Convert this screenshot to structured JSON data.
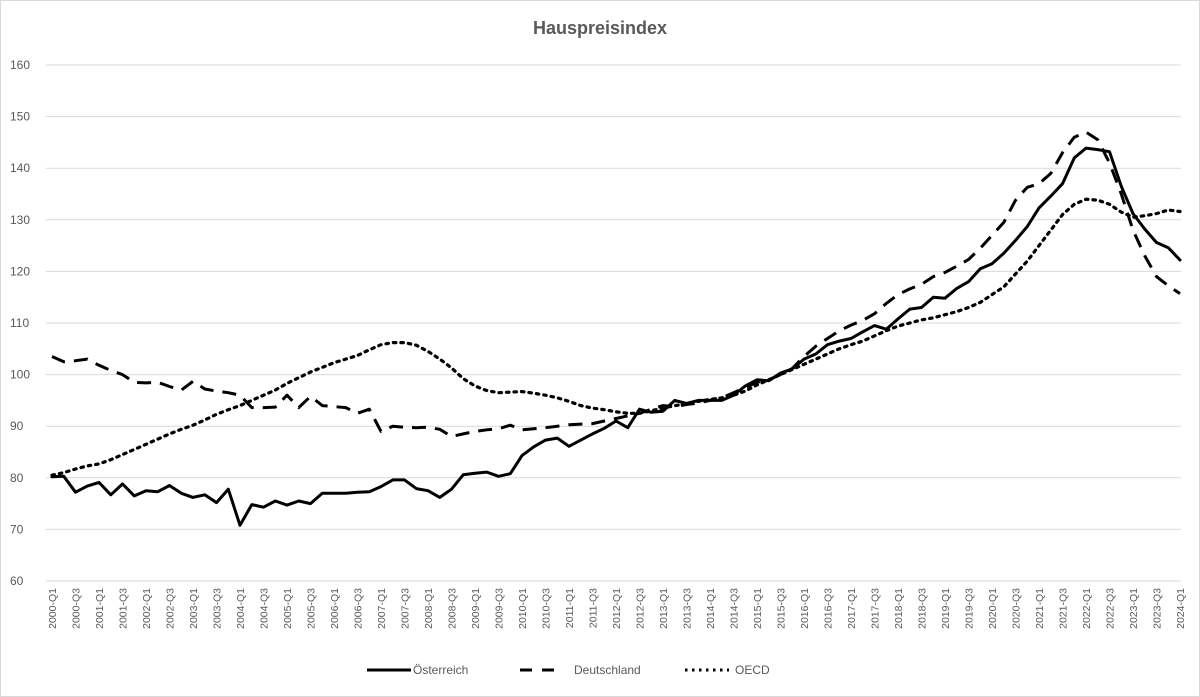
{
  "chart_data": {
    "type": "line",
    "title": "Hauspreisindex",
    "xlabel": "",
    "ylabel": "",
    "ylim": [
      60,
      160
    ],
    "yticks": [
      60,
      70,
      80,
      90,
      100,
      110,
      120,
      130,
      140,
      150,
      160
    ],
    "grid": true,
    "legend_position": "bottom",
    "x": [
      "2000-Q1",
      "2000-Q2",
      "2000-Q3",
      "2000-Q4",
      "2001-Q1",
      "2001-Q2",
      "2001-Q3",
      "2001-Q4",
      "2002-Q1",
      "2002-Q2",
      "2002-Q3",
      "2002-Q4",
      "2003-Q1",
      "2003-Q2",
      "2003-Q3",
      "2003-Q4",
      "2004-Q1",
      "2004-Q2",
      "2004-Q3",
      "2004-Q4",
      "2005-Q1",
      "2005-Q2",
      "2005-Q3",
      "2005-Q4",
      "2006-Q1",
      "2006-Q2",
      "2006-Q3",
      "2006-Q4",
      "2007-Q1",
      "2007-Q2",
      "2007-Q3",
      "2007-Q4",
      "2008-Q1",
      "2008-Q2",
      "2008-Q3",
      "2008-Q4",
      "2009-Q1",
      "2009-Q2",
      "2009-Q3",
      "2009-Q4",
      "2010-Q1",
      "2010-Q2",
      "2010-Q3",
      "2010-Q4",
      "2011-Q1",
      "2011-Q2",
      "2011-Q3",
      "2011-Q4",
      "2012-Q1",
      "2012-Q2",
      "2012-Q3",
      "2012-Q4",
      "2013-Q1",
      "2013-Q2",
      "2013-Q3",
      "2013-Q4",
      "2014-Q1",
      "2014-Q2",
      "2014-Q3",
      "2014-Q4",
      "2015-Q1",
      "2015-Q2",
      "2015-Q3",
      "2015-Q4",
      "2016-Q1",
      "2016-Q2",
      "2016-Q3",
      "2016-Q4",
      "2017-Q1",
      "2017-Q2",
      "2017-Q3",
      "2017-Q4",
      "2018-Q1",
      "2018-Q2",
      "2018-Q3",
      "2018-Q4",
      "2019-Q1",
      "2019-Q2",
      "2019-Q3",
      "2019-Q4",
      "2020-Q1",
      "2020-Q2",
      "2020-Q3",
      "2020-Q4",
      "2021-Q1",
      "2021-Q2",
      "2021-Q3",
      "2021-Q4",
      "2022-Q1",
      "2022-Q2",
      "2022-Q3",
      "2022-Q4",
      "2023-Q1",
      "2023-Q2",
      "2023-Q3",
      "2023-Q4",
      "2024-Q1"
    ],
    "xtick_labels": [
      "2000-Q1",
      "2000-Q3",
      "2001-Q1",
      "2001-Q3",
      "2002-Q1",
      "2002-Q3",
      "2003-Q1",
      "2003-Q3",
      "2004-Q1",
      "2004-Q3",
      "2005-Q1",
      "2005-Q3",
      "2006-Q1",
      "2006-Q3",
      "2007-Q1",
      "2007-Q3",
      "2008-Q1",
      "2008-Q3",
      "2009-Q1",
      "2009-Q3",
      "2010-Q1",
      "2010-Q3",
      "2011-Q1",
      "2011-Q3",
      "2012-Q1",
      "2012-Q3",
      "2013-Q1",
      "2013-Q3",
      "2014-Q1",
      "2014-Q3",
      "2015-Q1",
      "2015-Q3",
      "2016-Q1",
      "2016-Q3",
      "2017-Q1",
      "2017-Q3",
      "2018-Q1",
      "2018-Q3",
      "2019-Q1",
      "2019-Q3",
      "2020-Q1",
      "2020-Q3",
      "2021-Q1",
      "2021-Q3",
      "2022-Q1",
      "2022-Q3",
      "2023-Q1",
      "2023-Q3",
      "2024-Q1"
    ],
    "series": [
      {
        "name": "Österreich",
        "style": "solid",
        "color": "#000000",
        "values": [
          80.2,
          80.3,
          77.2,
          78.4,
          79.1,
          76.7,
          78.8,
          76.5,
          77.5,
          77.3,
          78.5,
          77.0,
          76.2,
          76.7,
          75.2,
          77.8,
          70.8,
          74.8,
          74.3,
          75.5,
          74.7,
          75.5,
          75.0,
          77.0,
          77.0,
          77.0,
          77.2,
          77.3,
          78.3,
          79.6,
          79.6,
          77.9,
          77.5,
          76.2,
          77.8,
          80.6,
          80.9,
          81.1,
          80.3,
          80.8,
          84.3,
          86.0,
          87.3,
          87.7,
          86.1,
          87.3,
          88.5,
          89.6,
          91.0,
          89.7,
          93.3,
          92.7,
          92.9,
          95.0,
          94.4,
          95.0,
          95.0,
          95.0,
          96.0,
          97.8,
          99.0,
          98.8,
          100.3,
          101.1,
          103.0,
          104.0,
          105.8,
          106.5,
          107.0,
          108.3,
          109.5,
          108.8,
          110.8,
          112.7,
          113.0,
          115.0,
          114.8,
          116.7,
          118.0,
          120.5,
          121.5,
          123.5,
          126.0,
          128.7,
          132.3,
          134.6,
          137.0,
          142.0,
          143.9,
          143.6,
          143.2,
          136.5,
          131.2,
          128.2,
          125.6,
          124.6,
          122.2
        ]
      },
      {
        "name": "Deutschland",
        "style": "dashed",
        "color": "#000000",
        "values": [
          103.5,
          102.5,
          102.7,
          103.0,
          101.8,
          100.8,
          100.0,
          98.5,
          98.4,
          98.5,
          97.7,
          97.0,
          98.7,
          97.2,
          96.8,
          96.5,
          96.0,
          93.6,
          93.6,
          93.7,
          96.0,
          93.6,
          95.8,
          94.0,
          93.8,
          93.6,
          92.5,
          93.3,
          89.0,
          90.0,
          89.8,
          89.7,
          89.8,
          89.4,
          88.0,
          88.5,
          89.0,
          89.3,
          89.5,
          90.2,
          89.3,
          89.5,
          89.7,
          90.0,
          90.3,
          90.4,
          90.5,
          91.0,
          91.5,
          92.0,
          92.5,
          93.3,
          94.0,
          93.8,
          94.2,
          94.5,
          95.0,
          95.5,
          96.5,
          97.5,
          98.5,
          99.0,
          100.0,
          101.2,
          103.5,
          105.5,
          107.0,
          108.5,
          109.6,
          110.5,
          111.8,
          113.8,
          115.5,
          116.6,
          117.5,
          119.0,
          119.8,
          121.0,
          122.3,
          124.5,
          127.0,
          129.5,
          133.8,
          136.3,
          137.0,
          139.0,
          143.0,
          146.0,
          147.0,
          145.5,
          141.0,
          135.0,
          128.0,
          123.0,
          119.0,
          117.2,
          115.7
        ]
      },
      {
        "name": "OECD",
        "style": "dotted",
        "color": "#000000",
        "values": [
          80.5,
          81.0,
          81.7,
          82.3,
          82.7,
          83.5,
          84.5,
          85.5,
          86.5,
          87.5,
          88.5,
          89.4,
          90.2,
          91.2,
          92.3,
          93.2,
          94.0,
          95.0,
          96.0,
          97.0,
          98.3,
          99.4,
          100.5,
          101.4,
          102.3,
          103.0,
          103.7,
          104.8,
          105.8,
          106.2,
          106.2,
          105.7,
          104.5,
          103.0,
          101.3,
          99.2,
          97.8,
          96.9,
          96.5,
          96.6,
          96.7,
          96.4,
          96.0,
          95.5,
          94.8,
          94.0,
          93.5,
          93.2,
          92.8,
          92.5,
          92.5,
          93.0,
          93.5,
          94.0,
          94.3,
          94.8,
          95.2,
          95.5,
          96.0,
          96.8,
          98.0,
          99.0,
          100.0,
          101.0,
          102.0,
          103.0,
          104.0,
          105.0,
          105.8,
          106.5,
          107.5,
          108.5,
          109.4,
          110.0,
          110.6,
          111.0,
          111.6,
          112.2,
          113.0,
          114.0,
          115.5,
          117.0,
          119.5,
          122.0,
          125.0,
          128.0,
          131.0,
          133.0,
          134.0,
          133.8,
          133.0,
          131.5,
          130.5,
          130.8,
          131.2,
          131.9,
          131.6
        ]
      }
    ]
  },
  "legend": {
    "items": [
      {
        "label": "Österreich",
        "style": "solid"
      },
      {
        "label": "Deutschland",
        "style": "dashed"
      },
      {
        "label": "OECD",
        "style": "dotted"
      }
    ]
  },
  "colors": {
    "line": "#000000",
    "grid": "#d9d9d9",
    "text": "#595959",
    "border": "#d9d9d9"
  }
}
